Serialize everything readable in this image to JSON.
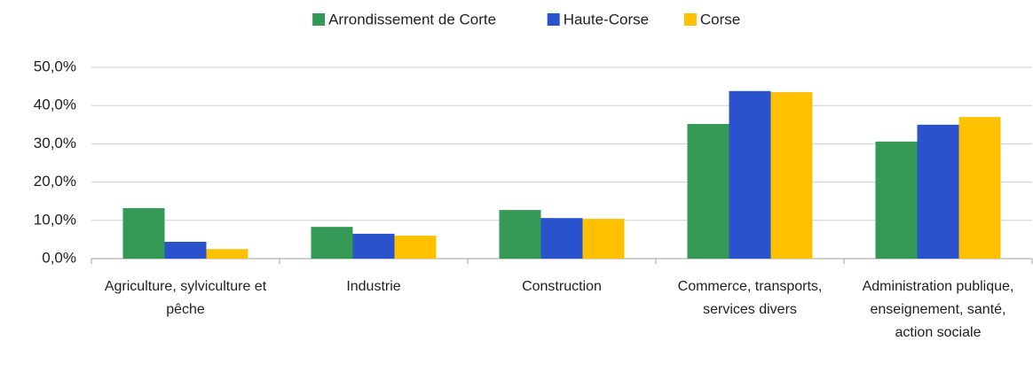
{
  "chart_data": {
    "type": "bar",
    "categories": [
      "Agriculture, sylviculture et pêche",
      "Industrie",
      "Construction",
      "Commerce, transports, services divers",
      "Administration publique, enseignement, santé, action sociale"
    ],
    "series": [
      {
        "name": "Arrondissement de Corte",
        "color": "#339955",
        "values": [
          13.2,
          8.3,
          12.7,
          35.2,
          30.6
        ]
      },
      {
        "name": "Haute-Corse",
        "color": "#2a52cc",
        "values": [
          4.4,
          6.5,
          10.6,
          43.8,
          35.0
        ]
      },
      {
        "name": "Corse",
        "color": "#ffc000",
        "values": [
          2.5,
          6.0,
          10.4,
          43.5,
          37.0
        ]
      }
    ],
    "ylim": [
      0,
      50
    ],
    "yticks": [
      {
        "value": 0,
        "label": "0,0%"
      },
      {
        "value": 10,
        "label": "10,0%"
      },
      {
        "value": 20,
        "label": "20,0%"
      },
      {
        "value": 30,
        "label": "30,0%"
      },
      {
        "value": 40,
        "label": "40,0%"
      },
      {
        "value": 50,
        "label": "50,0%"
      }
    ],
    "grid": true,
    "legend": "top"
  }
}
